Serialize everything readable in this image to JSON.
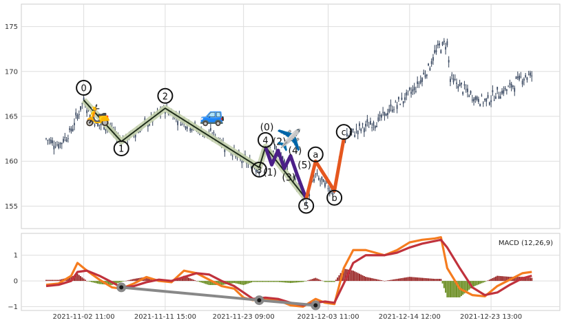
{
  "chart_data": [
    {
      "type": "candlestick",
      "panel": "price",
      "ylim": [
        152.5,
        177.5
      ],
      "y_ticks": [
        155,
        160,
        165,
        170,
        175
      ],
      "grid": true,
      "price_path": [
        [
          0,
          162.5
        ],
        [
          4,
          161.8
        ],
        [
          8,
          163.4
        ],
        [
          12,
          166.8
        ],
        [
          16,
          164.2
        ],
        [
          20,
          163.8
        ],
        [
          24,
          162.2
        ],
        [
          27,
          162.9
        ],
        [
          30,
          163.6
        ],
        [
          34,
          164.6
        ],
        [
          38,
          165.9
        ],
        [
          42,
          164.8
        ],
        [
          46,
          164.1
        ],
        [
          50,
          163.2
        ],
        [
          54,
          162.8
        ],
        [
          58,
          161.5
        ],
        [
          62,
          160.2
        ],
        [
          66,
          159.6
        ],
        [
          68,
          159.3
        ],
        [
          70,
          161.6
        ],
        [
          72,
          160.5
        ],
        [
          74,
          161.2
        ],
        [
          76,
          160.0
        ],
        [
          78,
          158.2
        ],
        [
          80,
          157.4
        ],
        [
          83,
          155.8
        ],
        [
          86,
          158.4
        ],
        [
          89,
          157.3
        ],
        [
          92,
          156.7
        ],
        [
          95,
          162.5
        ],
        [
          98,
          163.2
        ],
        [
          102,
          163.9
        ],
        [
          106,
          164.5
        ],
        [
          110,
          165.8
        ],
        [
          114,
          166.9
        ],
        [
          118,
          168.2
        ],
        [
          122,
          170.4
        ],
        [
          125,
          172.6
        ],
        [
          128,
          173.2
        ],
        [
          129,
          169.2
        ],
        [
          132,
          168.4
        ],
        [
          136,
          167.2
        ],
        [
          140,
          166.7
        ],
        [
          144,
          167.5
        ],
        [
          148,
          168.2
        ],
        [
          152,
          169.4
        ],
        [
          155,
          169.6
        ]
      ],
      "wave_labels": [
        {
          "label": "0",
          "x": 12,
          "y": 166.8,
          "circled": true
        },
        {
          "label": "1",
          "x": 24,
          "y": 162.2,
          "circled": true
        },
        {
          "label": "2",
          "x": 38,
          "y": 165.9,
          "circled": true
        },
        {
          "label": "3",
          "x": 68,
          "y": 159.3,
          "circled": true
        },
        {
          "label": "4",
          "x": 70,
          "y": 161.6,
          "circled": true
        },
        {
          "label": "5",
          "x": 83,
          "y": 155.8,
          "circled": true
        },
        {
          "label": "a",
          "x": 86,
          "y": 160.0,
          "circled": true
        },
        {
          "label": "b",
          "x": 92,
          "y": 156.7,
          "circled": true
        },
        {
          "label": "c",
          "x": 95,
          "y": 162.5,
          "circled": true
        },
        {
          "label": "(0)",
          "x": 70,
          "y": 163.8,
          "circled": false
        },
        {
          "label": "(1)",
          "x": 71,
          "y": 158.8,
          "circled": false
        },
        {
          "label": "(2)",
          "x": 74,
          "y": 162.2,
          "circled": false
        },
        {
          "label": "(3)",
          "x": 77,
          "y": 158.2,
          "circled": false
        },
        {
          "label": "(4)",
          "x": 79,
          "y": 161.2,
          "circled": false
        },
        {
          "label": "(5)",
          "x": 82,
          "y": 159.6,
          "circled": false
        }
      ],
      "icons": [
        "scooter-icon",
        "car-icon",
        "airplane-icon"
      ]
    },
    {
      "type": "line",
      "panel": "macd",
      "title": "MACD (12,26,9)",
      "ylim": [
        -1.15,
        1.85
      ],
      "y_ticks": [
        -1,
        0,
        1
      ],
      "x_tick_labels": [
        "2021-11-02 11:00",
        "2021-11-11 15:00",
        "2021-11-23 09:00",
        "2021-12-03 11:00",
        "2021-12-14 12:00",
        "2021-12-23 13:00"
      ],
      "x_ticks": [
        12,
        38,
        63,
        90,
        116,
        142
      ],
      "grid": true,
      "series": [
        {
          "values": [
            [
              0,
              -0.15
            ],
            [
              4,
              -0.1
            ],
            [
              8,
              0.2
            ],
            [
              10,
              0.7
            ],
            [
              13,
              0.4
            ],
            [
              17,
              0.05
            ],
            [
              21,
              -0.25
            ],
            [
              24,
              -0.3
            ],
            [
              28,
              -0.1
            ],
            [
              32,
              0.15
            ],
            [
              36,
              0.0
            ],
            [
              40,
              -0.05
            ],
            [
              44,
              0.4
            ],
            [
              48,
              0.3
            ],
            [
              52,
              0.05
            ],
            [
              56,
              -0.2
            ],
            [
              60,
              -0.3
            ],
            [
              63,
              -0.65
            ],
            [
              66,
              -0.75
            ],
            [
              70,
              -0.7
            ],
            [
              74,
              -0.75
            ],
            [
              78,
              -0.95
            ],
            [
              82,
              -1.0
            ],
            [
              86,
              -0.7
            ],
            [
              89,
              -0.85
            ],
            [
              92,
              -0.9
            ],
            [
              95,
              0.5
            ],
            [
              98,
              1.2
            ],
            [
              102,
              1.2
            ],
            [
              108,
              1.0
            ],
            [
              112,
              1.2
            ],
            [
              116,
              1.5
            ],
            [
              120,
              1.6
            ],
            [
              124,
              1.65
            ],
            [
              126,
              1.7
            ],
            [
              128,
              0.5
            ],
            [
              132,
              -0.3
            ],
            [
              136,
              -0.55
            ],
            [
              140,
              -0.6
            ],
            [
              144,
              -0.2
            ],
            [
              148,
              0.05
            ],
            [
              152,
              0.3
            ],
            [
              155,
              0.35
            ]
          ]
        },
        {
          "values": [
            [
              0,
              -0.2
            ],
            [
              4,
              -0.15
            ],
            [
              8,
              0.0
            ],
            [
              10,
              0.35
            ],
            [
              13,
              0.4
            ],
            [
              17,
              0.2
            ],
            [
              21,
              -0.05
            ],
            [
              24,
              -0.25
            ],
            [
              28,
              -0.2
            ],
            [
              32,
              -0.05
            ],
            [
              36,
              0.05
            ],
            [
              40,
              0.0
            ],
            [
              44,
              0.15
            ],
            [
              48,
              0.3
            ],
            [
              52,
              0.25
            ],
            [
              56,
              0.0
            ],
            [
              60,
              -0.2
            ],
            [
              63,
              -0.45
            ],
            [
              66,
              -0.7
            ],
            [
              70,
              -0.65
            ],
            [
              74,
              -0.7
            ],
            [
              78,
              -0.85
            ],
            [
              82,
              -0.95
            ],
            [
              86,
              -0.85
            ],
            [
              89,
              -0.8
            ],
            [
              92,
              -0.85
            ],
            [
              95,
              -0.1
            ],
            [
              98,
              0.7
            ],
            [
              102,
              1.0
            ],
            [
              108,
              1.0
            ],
            [
              112,
              1.1
            ],
            [
              116,
              1.3
            ],
            [
              120,
              1.45
            ],
            [
              124,
              1.55
            ],
            [
              126,
              1.6
            ],
            [
              128,
              1.3
            ],
            [
              132,
              0.5
            ],
            [
              136,
              -0.25
            ],
            [
              140,
              -0.55
            ],
            [
              144,
              -0.45
            ],
            [
              148,
              -0.15
            ],
            [
              152,
              0.1
            ],
            [
              155,
              0.2
            ]
          ]
        }
      ],
      "divergence_points": [
        [
          24,
          -0.25
        ],
        [
          68,
          -0.75
        ],
        [
          86,
          -0.95
        ]
      ]
    }
  ]
}
